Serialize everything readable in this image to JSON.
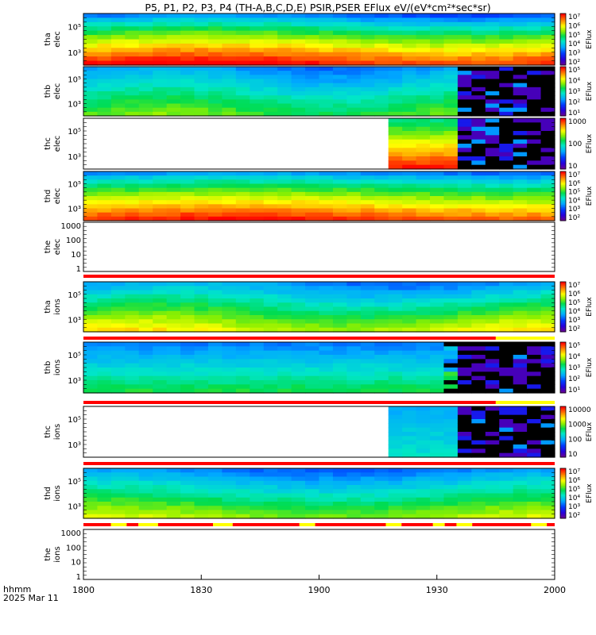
{
  "title": "P5, P1, P2, P3, P4 (TH-A,B,C,D,E) PSIR,PSER EFlux eV/(eV*cm²*sec*sr)",
  "footer": {
    "time_format": "hhmm",
    "date": "2025 Mar 11"
  },
  "colors": {
    "flag_red": "#ff0000",
    "flag_yellow": "#ffff00",
    "flag_black": "#000000"
  },
  "chart_data": {
    "type": "heatmap",
    "x": {
      "ticks": [
        "1800",
        "1830",
        "1900",
        "1930",
        "2000"
      ],
      "range": [
        "18:00",
        "20:00"
      ]
    },
    "panels": [
      {
        "id": "tha-elec",
        "label": [
          "tha",
          "elec"
        ],
        "kind": "spectrogram",
        "y_ticks": [
          "10⁵",
          "10³"
        ],
        "colorbar": {
          "ticks": [
            "10⁷",
            "10⁶",
            "10⁵",
            "10⁴",
            "10³",
            "10²"
          ],
          "label": "EFlux"
        },
        "scheme": "tha_e"
      },
      {
        "id": "thb-elec",
        "label": [
          "thb",
          "elec"
        ],
        "kind": "spectrogram",
        "y_ticks": [
          "10⁵",
          "10³"
        ],
        "colorbar": {
          "ticks": [
            "10⁵",
            "10⁴",
            "10³",
            "10²",
            "10¹"
          ],
          "label": "EFlux"
        },
        "scheme": "thb_e"
      },
      {
        "id": "thc-elec",
        "label": [
          "thc",
          "elec"
        ],
        "kind": "spectrogram",
        "y_ticks": [
          "10⁵",
          "10³"
        ],
        "colorbar": {
          "ticks": [
            "1000",
            "100",
            "10"
          ],
          "label": "EFlux"
        },
        "scheme": "thc_e"
      },
      {
        "id": "thd-elec",
        "label": [
          "thd",
          "elec"
        ],
        "kind": "spectrogram",
        "y_ticks": [
          "10⁵",
          "10³"
        ],
        "colorbar": {
          "ticks": [
            "10⁷",
            "10⁶",
            "10⁵",
            "10⁴",
            "10³",
            "10²"
          ],
          "label": "EFlux"
        },
        "scheme": "thd_e"
      },
      {
        "id": "the-elec",
        "label": [
          "the",
          "elec"
        ],
        "kind": "empty",
        "y_ticks": [
          "1000",
          "100",
          "10",
          "1"
        ]
      },
      {
        "id": "tha-ions",
        "label": [
          "tha",
          "ions"
        ],
        "kind": "spectrogram",
        "y_ticks": [
          "10⁵",
          "10³"
        ],
        "colorbar": {
          "ticks": [
            "10⁷",
            "10⁶",
            "10⁵",
            "10⁴",
            "10³",
            "10²"
          ],
          "label": "EFlux"
        },
        "scheme": "tha_i"
      },
      {
        "id": "thb-ions",
        "label": [
          "thb",
          "ions"
        ],
        "kind": "spectrogram",
        "y_ticks": [
          "10⁵",
          "10³"
        ],
        "colorbar": {
          "ticks": [
            "10⁵",
            "10⁴",
            "10³",
            "10²",
            "10¹"
          ],
          "label": "EFlux"
        },
        "scheme": "thb_i"
      },
      {
        "id": "thc-ions",
        "label": [
          "thc",
          "ions"
        ],
        "kind": "spectrogram",
        "y_ticks": [
          "10⁵",
          "10³"
        ],
        "colorbar": {
          "ticks": [
            "10000",
            "1000",
            "100",
            "10"
          ],
          "label": "EFlux"
        },
        "scheme": "thc_i"
      },
      {
        "id": "thd-ions",
        "label": [
          "thd",
          "ions"
        ],
        "kind": "spectrogram",
        "y_ticks": [
          "10⁵",
          "10³"
        ],
        "colorbar": {
          "ticks": [
            "10⁷",
            "10⁶",
            "10⁵",
            "10⁴",
            "10³",
            "10²"
          ],
          "label": "EFlux"
        },
        "scheme": "thd_i"
      },
      {
        "id": "the-ions",
        "label": [
          "the",
          "ions"
        ],
        "kind": "empty",
        "y_ticks": [
          "1000",
          "100",
          "10",
          "1"
        ]
      }
    ],
    "flag_bars": [
      {
        "after": "the-elec",
        "segments": [
          [
            "18:00",
            "20:00",
            "red"
          ]
        ]
      },
      {
        "after": "tha-ions",
        "segments": [
          [
            "18:00",
            "19:45",
            "red"
          ],
          [
            "19:45",
            "20:00",
            "yellow"
          ]
        ]
      },
      {
        "after": "thb-ions",
        "segments": [
          [
            "18:00",
            "19:45",
            "red"
          ],
          [
            "19:45",
            "20:00",
            "yellow"
          ]
        ]
      },
      {
        "after": "thc-ions",
        "segments": [
          [
            "18:00",
            "20:00",
            "red"
          ]
        ]
      },
      {
        "after": "thd-ions",
        "segments": [
          [
            "18:00",
            "18:07",
            "red"
          ],
          [
            "18:07",
            "18:11",
            "yellow"
          ],
          [
            "18:11",
            "18:14",
            "red"
          ],
          [
            "18:14",
            "18:19",
            "yellow"
          ],
          [
            "18:19",
            "18:33",
            "red"
          ],
          [
            "18:33",
            "18:38",
            "yellow"
          ],
          [
            "18:38",
            "18:55",
            "red"
          ],
          [
            "18:55",
            "18:59",
            "yellow"
          ],
          [
            "18:59",
            "19:17",
            "red"
          ],
          [
            "19:17",
            "19:21",
            "yellow"
          ],
          [
            "19:21",
            "19:29",
            "red"
          ],
          [
            "19:29",
            "19:32",
            "yellow"
          ],
          [
            "19:32",
            "19:35",
            "red"
          ],
          [
            "19:35",
            "19:39",
            "yellow"
          ],
          [
            "19:39",
            "19:54",
            "red"
          ],
          [
            "19:54",
            "19:58",
            "yellow"
          ],
          [
            "19:58",
            "20:00",
            "red"
          ]
        ]
      }
    ]
  }
}
